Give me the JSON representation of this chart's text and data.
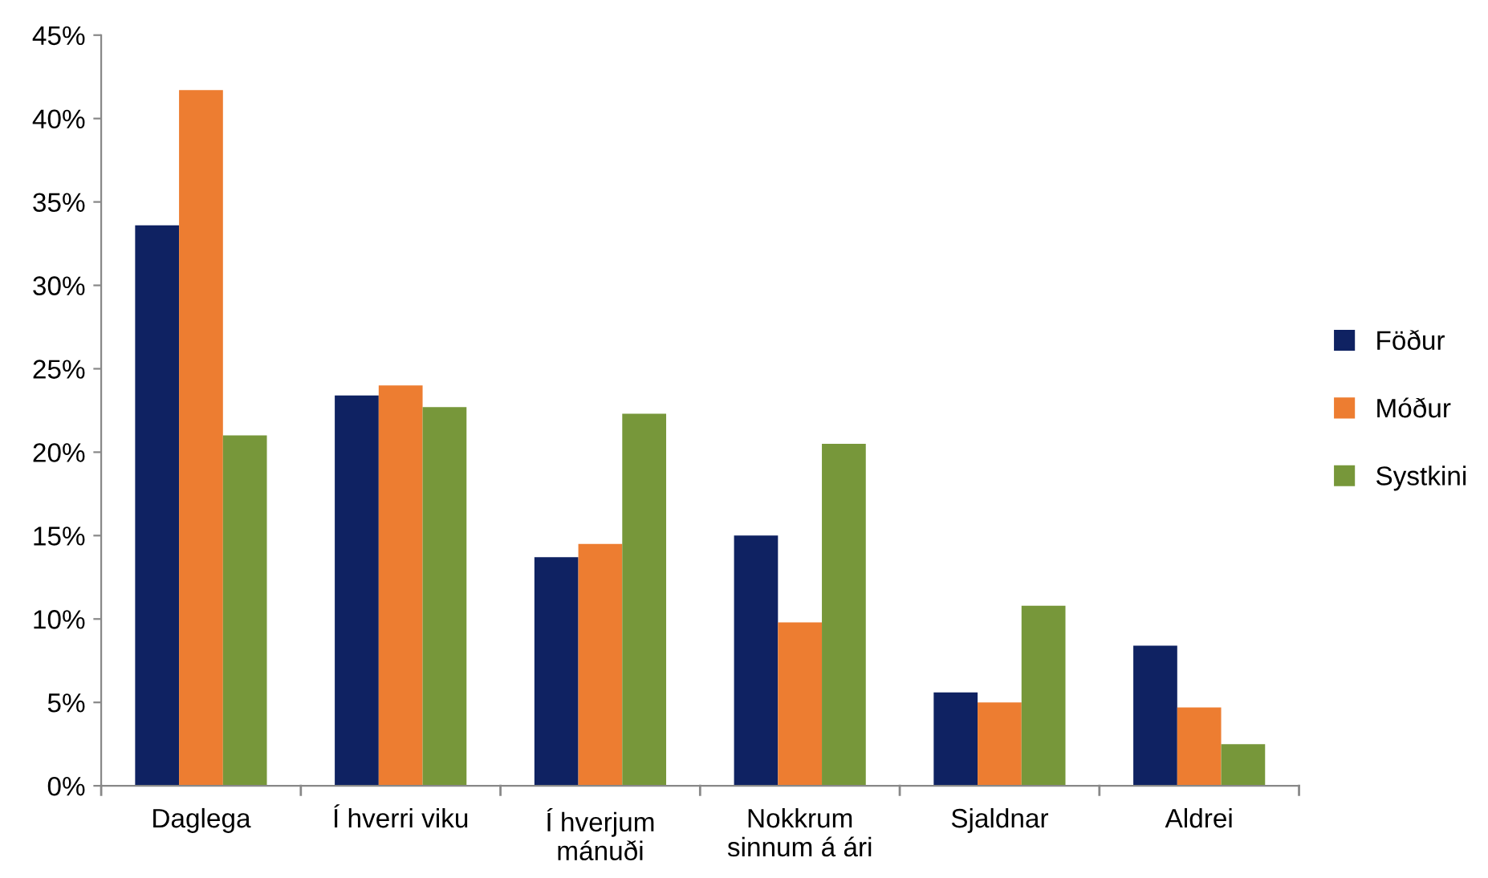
{
  "chart_data": {
    "type": "bar",
    "categories": [
      "Daglega",
      "Í hverri viku",
      "Í hverjum\nmánuði",
      "Nokkrum\nsinnum á ári",
      "Sjaldnar",
      "Aldrei"
    ],
    "series": [
      {
        "name": "Föður",
        "color": "#0f2262",
        "values": [
          33.6,
          23.4,
          13.7,
          15.0,
          5.6,
          8.4
        ]
      },
      {
        "name": "Móður",
        "color": "#ed7d31",
        "values": [
          41.7,
          24.0,
          14.5,
          9.8,
          5.0,
          4.7
        ]
      },
      {
        "name": "Systkini",
        "color": "#77973a",
        "values": [
          21.0,
          22.7,
          22.3,
          20.5,
          10.8,
          2.5
        ]
      }
    ],
    "ylim": [
      0,
      45
    ],
    "yticks": [
      {
        "value": 0,
        "label": "0%"
      },
      {
        "value": 5,
        "label": "5%"
      },
      {
        "value": 10,
        "label": "10%"
      },
      {
        "value": 15,
        "label": "15%"
      },
      {
        "value": 20,
        "label": "20%"
      },
      {
        "value": 25,
        "label": "25%"
      },
      {
        "value": 30,
        "label": "30%"
      },
      {
        "value": 35,
        "label": "35%"
      },
      {
        "value": 40,
        "label": "40%"
      },
      {
        "value": 45,
        "label": "45%"
      }
    ],
    "grid": false,
    "legend": "right"
  }
}
